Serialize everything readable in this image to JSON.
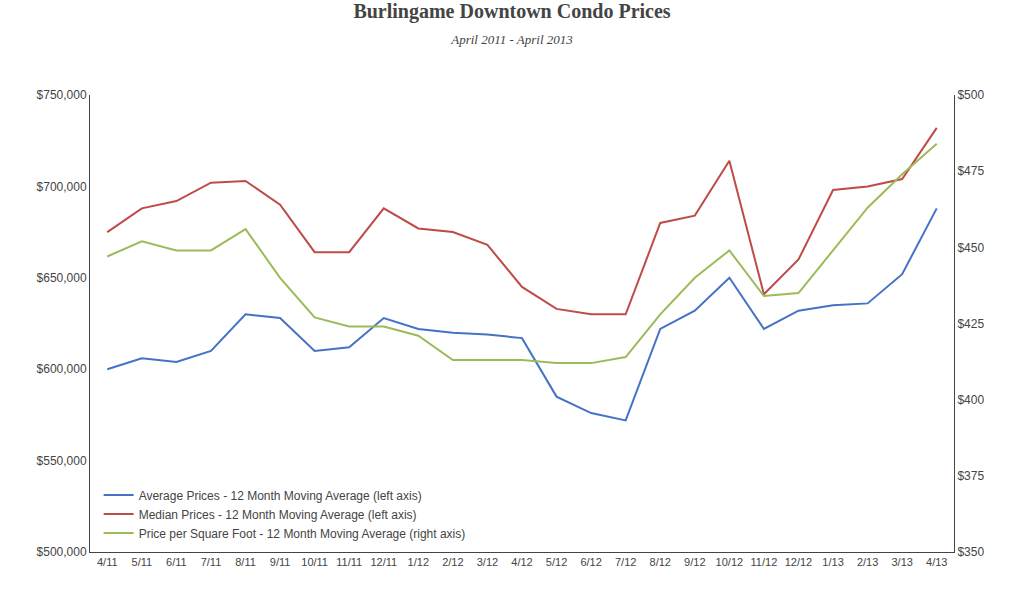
{
  "chart_data": {
    "type": "line",
    "title": "Burlingame Downtown Condo Prices",
    "subtitle": "April 2011 - April 2013",
    "categories": [
      "4/11",
      "5/11",
      "6/11",
      "7/11",
      "8/11",
      "9/11",
      "10/11",
      "11/11",
      "12/11",
      "1/12",
      "2/12",
      "3/12",
      "4/12",
      "5/12",
      "6/12",
      "7/12",
      "8/12",
      "9/12",
      "10/12",
      "11/12",
      "12/12",
      "1/13",
      "2/13",
      "3/13",
      "4/13"
    ],
    "series": [
      {
        "name": "Average Prices - 12 Month Moving Average (left axis)",
        "color": "#4472C4",
        "values": [
          600000,
          606000,
          604000,
          610000,
          630000,
          628000,
          610000,
          612000,
          628000,
          622000,
          620000,
          619000,
          617000,
          585000,
          576000,
          572000,
          622000,
          632000,
          650000,
          622000,
          632000,
          635000,
          636000,
          652000,
          688000
        ]
      },
      {
        "name": "Median Prices - 12 Month Moving Average (left axis)",
        "color": "#BE4B48",
        "values": [
          675000,
          688000,
          692000,
          702000,
          703000,
          690000,
          664000,
          664000,
          688000,
          677000,
          675000,
          668000,
          645000,
          633000,
          630000,
          630000,
          680000,
          684000,
          714000,
          641000,
          660000,
          698000,
          700000,
          704000,
          732000
        ]
      },
      {
        "name": "Price per Square Foot - 12 Month Moving Average (right axis)",
        "color": "#9BBB59",
        "axis": "y2",
        "values": [
          447,
          452,
          449,
          449,
          456,
          440,
          427,
          424,
          424,
          421,
          413,
          413,
          413,
          412,
          412,
          414,
          428,
          440,
          449,
          434,
          435,
          449,
          463,
          474,
          484
        ]
      }
    ],
    "ylim": [
      500000,
      750000
    ],
    "yticks": [
      {
        "value": 500000,
        "label": "$500,000"
      },
      {
        "value": 550000,
        "label": "$550,000"
      },
      {
        "value": 600000,
        "label": "$600,000"
      },
      {
        "value": 650000,
        "label": "$650,000"
      },
      {
        "value": 700000,
        "label": "$700,000"
      },
      {
        "value": 750000,
        "label": "$750,000"
      }
    ],
    "y2lim": [
      350,
      500
    ],
    "y2ticks": [
      {
        "value": 350,
        "label": "$350"
      },
      {
        "value": 375,
        "label": "$375"
      },
      {
        "value": 400,
        "label": "$400"
      },
      {
        "value": 425,
        "label": "$425"
      },
      {
        "value": 450,
        "label": "$450"
      },
      {
        "value": 475,
        "label": "$475"
      },
      {
        "value": 500,
        "label": "$500"
      }
    ],
    "grid": false,
    "legend": "lower left"
  }
}
